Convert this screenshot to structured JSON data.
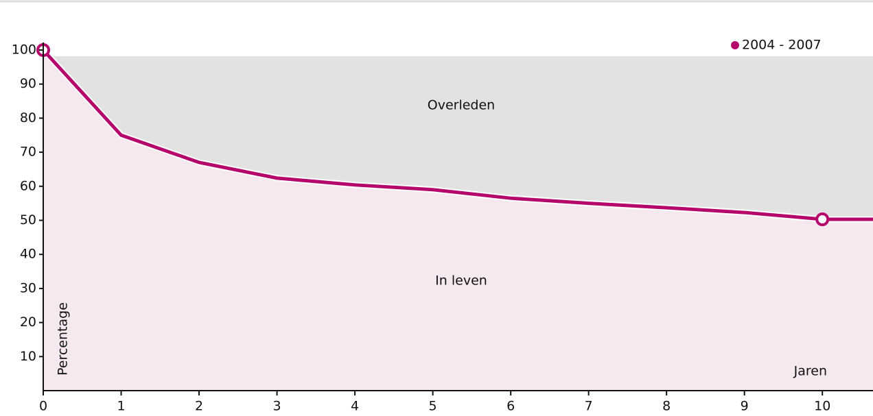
{
  "chart_data": {
    "type": "area-line",
    "x": [
      0,
      1,
      2,
      3,
      4,
      5,
      6,
      7,
      8,
      9,
      10,
      10.65
    ],
    "series": [
      {
        "name": "2004 - 2007",
        "color": "#b5076b",
        "values": [
          100,
          75,
          67,
          62.4,
          60.4,
          59,
          56.5,
          55,
          53.7,
          52.3,
          50.3,
          50.3
        ]
      }
    ],
    "marked_points": [
      0,
      10
    ],
    "xlim": [
      0,
      10.65
    ],
    "ylim": [
      0,
      100
    ],
    "xticks": [
      0,
      1,
      2,
      3,
      4,
      5,
      6,
      7,
      8,
      9,
      10
    ],
    "yticks": [
      10,
      20,
      30,
      40,
      50,
      60,
      70,
      80,
      90,
      100
    ],
    "ylabel": "Percentage",
    "xlabel": "Jaren",
    "annotations": [
      "Overleden",
      "In leven"
    ]
  }
}
